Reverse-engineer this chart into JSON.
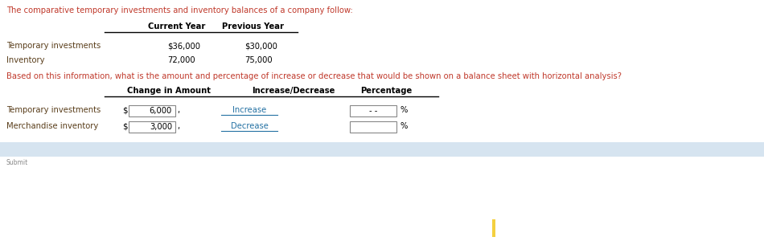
{
  "bg_color": "#ffffff",
  "intro_text": "The comparative temporary investments and inventory balances of a company follow:",
  "intro_color": "#c0392b",
  "table1_col1_header": "Current Year",
  "table1_col2_header": "Previous Year",
  "table1_rows": [
    [
      "Temporary investments",
      "$36,000",
      "$30,000"
    ],
    [
      "Inventory",
      "72,000",
      "75,000"
    ]
  ],
  "question_text": "Based on this information, what is the amount and percentage of increase or decrease that would be shown on a balance sheet with horizontal analysis?",
  "question_color": "#c0392b",
  "table2_col1_header": "Change in Amount",
  "table2_col2_header": "Increase/Decrease",
  "table2_col3_header": "Percentage",
  "table2_rows": [
    [
      "Temporary investments",
      "6,000",
      "Increase",
      "- -"
    ],
    [
      "Merchandise inventory",
      "3,000",
      "Decrease",
      ""
    ]
  ],
  "label_color": "#5a3e1b",
  "value_color": "#000000",
  "header_color": "#000000",
  "link_color": "#2471a3",
  "footer_bg": "#d6e4f0",
  "yellow_bar_color": "#f4d03f",
  "font_size": 7.2
}
